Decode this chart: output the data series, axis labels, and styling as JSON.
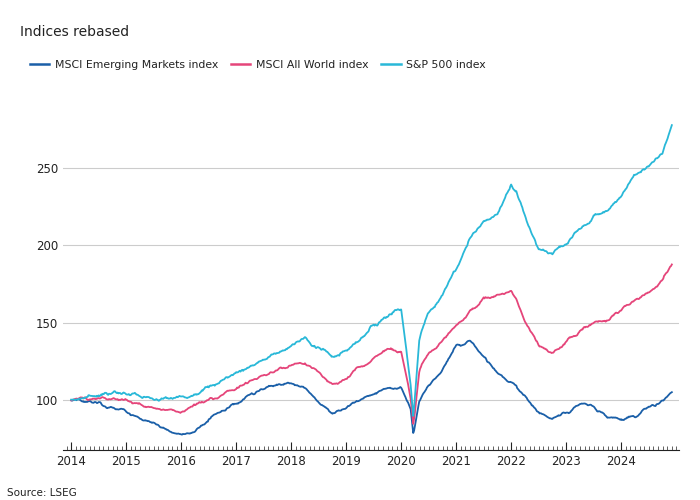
{
  "title": "Indices rebased",
  "source": "Source: LSEG",
  "legend_items": [
    {
      "label": "MSCI Emerging Markets index",
      "color": "#1a5fa8"
    },
    {
      "label": "MSCI All World index",
      "color": "#e5457a"
    },
    {
      "label": "S&P 500 index",
      "color": "#29b8d8"
    }
  ],
  "x_ticks": [
    2014,
    2015,
    2016,
    2017,
    2018,
    2019,
    2020,
    2021,
    2022,
    2023,
    2024
  ],
  "y_ticks": [
    100,
    150,
    200,
    250
  ],
  "ylim": [
    68,
    300
  ],
  "xlim": [
    2013.85,
    2025.05
  ],
  "background_color": "#ffffff",
  "grid_color": "#cccccc",
  "text_color": "#222222",
  "line_width": 1.3,
  "sp500_waypoints": [
    [
      2014.0,
      100
    ],
    [
      2014.5,
      104
    ],
    [
      2015.0,
      105
    ],
    [
      2015.5,
      100
    ],
    [
      2016.0,
      102
    ],
    [
      2016.5,
      108
    ],
    [
      2017.0,
      118
    ],
    [
      2017.5,
      126
    ],
    [
      2018.0,
      135
    ],
    [
      2018.25,
      140
    ],
    [
      2018.75,
      128
    ],
    [
      2019.0,
      132
    ],
    [
      2019.5,
      148
    ],
    [
      2019.75,
      155
    ],
    [
      2020.0,
      160
    ],
    [
      2020.17,
      110
    ],
    [
      2020.22,
      88
    ],
    [
      2020.33,
      140
    ],
    [
      2020.5,
      158
    ],
    [
      2020.75,
      168
    ],
    [
      2021.0,
      185
    ],
    [
      2021.25,
      205
    ],
    [
      2021.5,
      215
    ],
    [
      2021.75,
      220
    ],
    [
      2022.0,
      240
    ],
    [
      2022.1,
      235
    ],
    [
      2022.25,
      218
    ],
    [
      2022.5,
      198
    ],
    [
      2022.75,
      195
    ],
    [
      2023.0,
      200
    ],
    [
      2023.25,
      210
    ],
    [
      2023.5,
      218
    ],
    [
      2023.75,
      222
    ],
    [
      2024.0,
      232
    ],
    [
      2024.25,
      245
    ],
    [
      2024.5,
      252
    ],
    [
      2024.75,
      260
    ],
    [
      2024.92,
      278
    ]
  ],
  "acwi_waypoints": [
    [
      2014.0,
      100
    ],
    [
      2014.5,
      102
    ],
    [
      2015.0,
      100
    ],
    [
      2015.5,
      95
    ],
    [
      2016.0,
      93
    ],
    [
      2016.5,
      100
    ],
    [
      2017.0,
      108
    ],
    [
      2017.5,
      116
    ],
    [
      2018.0,
      122
    ],
    [
      2018.25,
      124
    ],
    [
      2018.75,
      110
    ],
    [
      2019.0,
      114
    ],
    [
      2019.5,
      128
    ],
    [
      2019.75,
      133
    ],
    [
      2020.0,
      133
    ],
    [
      2020.17,
      100
    ],
    [
      2020.22,
      83
    ],
    [
      2020.33,
      120
    ],
    [
      2020.5,
      130
    ],
    [
      2020.75,
      138
    ],
    [
      2021.0,
      148
    ],
    [
      2021.25,
      158
    ],
    [
      2021.5,
      165
    ],
    [
      2021.75,
      168
    ],
    [
      2022.0,
      170
    ],
    [
      2022.1,
      165
    ],
    [
      2022.25,
      150
    ],
    [
      2022.5,
      135
    ],
    [
      2022.75,
      130
    ],
    [
      2023.0,
      138
    ],
    [
      2023.25,
      145
    ],
    [
      2023.5,
      150
    ],
    [
      2023.75,
      152
    ],
    [
      2024.0,
      158
    ],
    [
      2024.25,
      165
    ],
    [
      2024.5,
      170
    ],
    [
      2024.75,
      178
    ],
    [
      2024.92,
      188
    ]
  ],
  "em_waypoints": [
    [
      2014.0,
      100
    ],
    [
      2014.5,
      98
    ],
    [
      2015.0,
      92
    ],
    [
      2015.5,
      85
    ],
    [
      2016.0,
      78
    ],
    [
      2016.25,
      80
    ],
    [
      2016.5,
      88
    ],
    [
      2017.0,
      98
    ],
    [
      2017.5,
      108
    ],
    [
      2018.0,
      112
    ],
    [
      2018.25,
      108
    ],
    [
      2018.5,
      98
    ],
    [
      2018.75,
      92
    ],
    [
      2019.0,
      96
    ],
    [
      2019.5,
      105
    ],
    [
      2019.75,
      108
    ],
    [
      2020.0,
      108
    ],
    [
      2020.17,
      95
    ],
    [
      2020.22,
      78
    ],
    [
      2020.33,
      100
    ],
    [
      2020.5,
      110
    ],
    [
      2020.75,
      120
    ],
    [
      2021.0,
      135
    ],
    [
      2021.25,
      138
    ],
    [
      2021.5,
      128
    ],
    [
      2021.75,
      118
    ],
    [
      2022.0,
      112
    ],
    [
      2022.25,
      103
    ],
    [
      2022.5,
      92
    ],
    [
      2022.75,
      88
    ],
    [
      2023.0,
      92
    ],
    [
      2023.25,
      98
    ],
    [
      2023.5,
      96
    ],
    [
      2023.75,
      90
    ],
    [
      2024.0,
      88
    ],
    [
      2024.25,
      90
    ],
    [
      2024.5,
      95
    ],
    [
      2024.75,
      100
    ],
    [
      2024.92,
      105
    ]
  ]
}
